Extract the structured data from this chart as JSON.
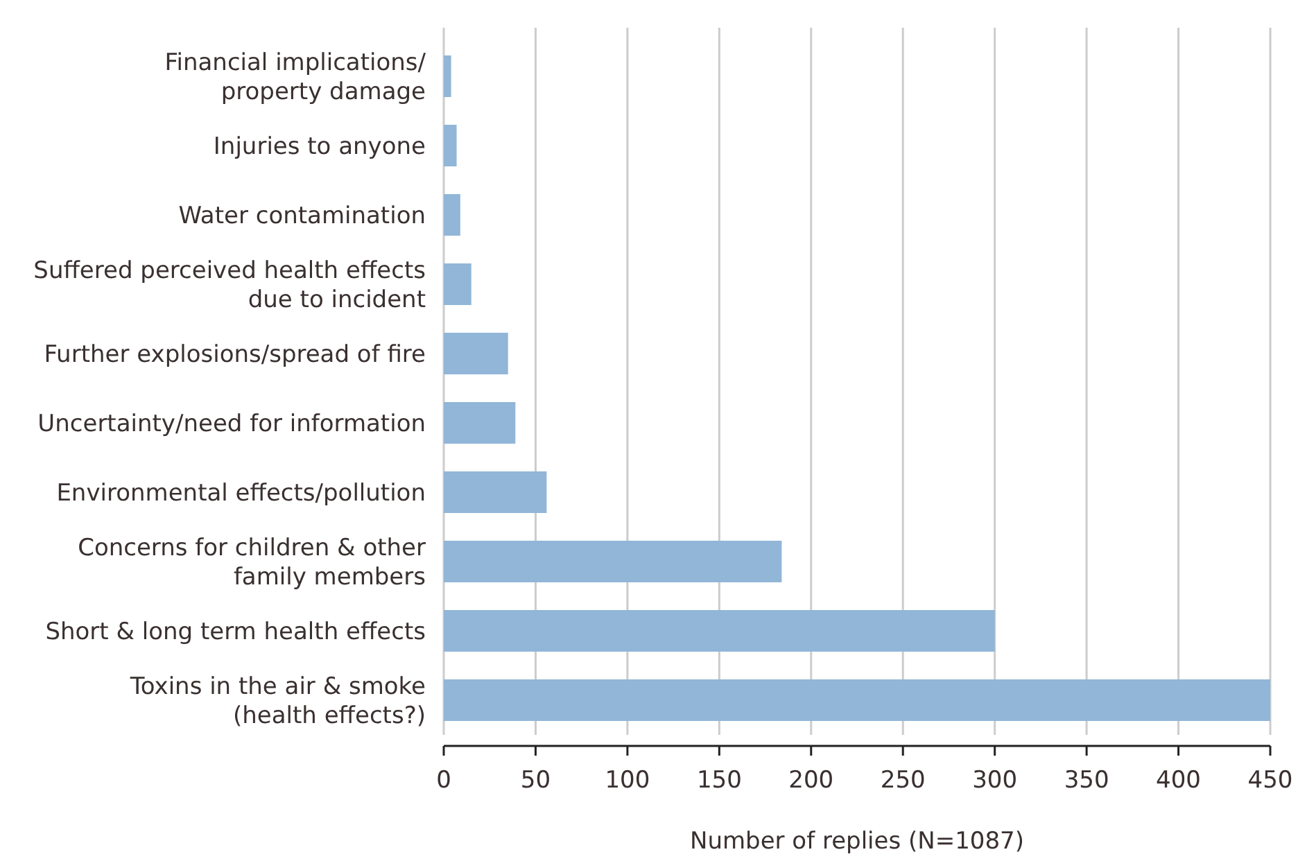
{
  "chart_data": {
    "type": "bar",
    "orientation": "horizontal",
    "xlabel": "Number of replies (N=1087)",
    "categories": [
      "Financial implications/\nproperty damage",
      "Injuries to anyone",
      "Water contamination",
      "Suffered perceived health effects\ndue to incident",
      "Further explosions/spread of fire",
      "Uncertainty/need for information",
      "Environmental effects/pollution",
      "Concerns for children & other\nfamily members",
      "Short & long term health effects",
      "Toxins in the air & smoke\n(health effects?)"
    ],
    "values": [
      4,
      7,
      9,
      15,
      35,
      39,
      56,
      184,
      300,
      450
    ],
    "color": "#91b6d7",
    "xlim": [
      0,
      450
    ],
    "xticks": [
      0,
      50,
      100,
      150,
      200,
      250,
      300,
      350,
      400,
      450
    ],
    "grid": "x"
  }
}
